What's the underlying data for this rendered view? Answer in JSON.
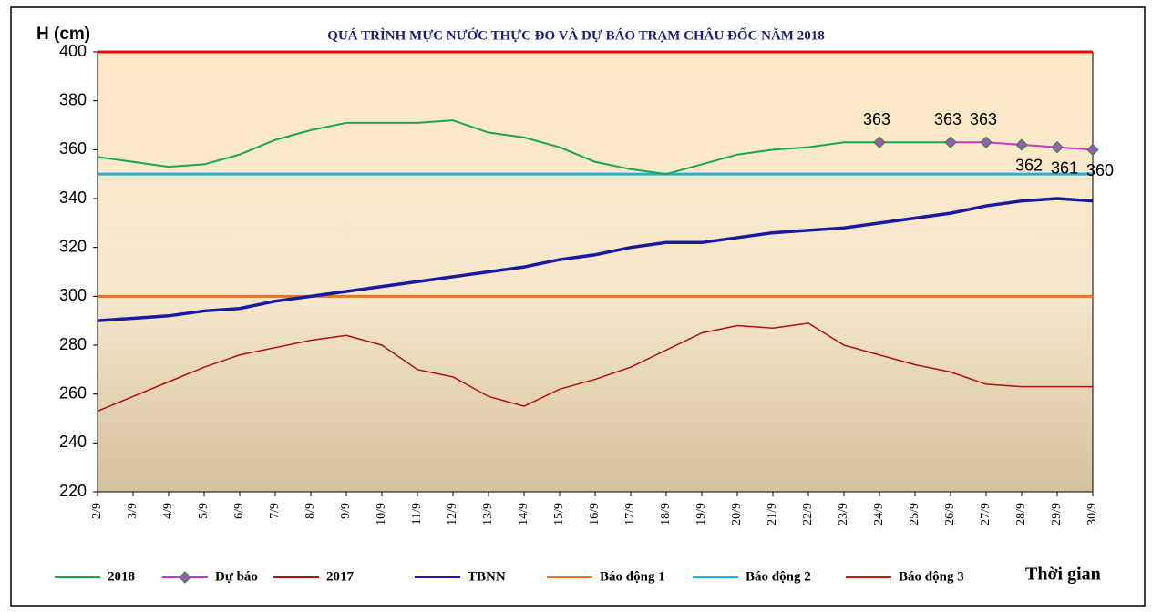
{
  "chart_data": {
    "type": "line",
    "title": "QUÁ TRÌNH MỰC NƯỚC THỰC ĐO VÀ DỰ BÁO TRẠM CHÂU ĐỐC NĂM 2018",
    "y_label": "H (cm)",
    "x_label": "Thời gian",
    "categories": [
      "2/9",
      "3/9",
      "4/9",
      "5/9",
      "6/9",
      "7/9",
      "8/9",
      "9/9",
      "10/9",
      "11/9",
      "12/9",
      "13/9",
      "14/9",
      "15/9",
      "16/9",
      "17/9",
      "18/9",
      "19/9",
      "20/9",
      "21/9",
      "22/9",
      "23/9",
      "24/9",
      "25/9",
      "26/9",
      "27/9",
      "28/9",
      "29/9",
      "30/9"
    ],
    "ylim": [
      220,
      400
    ],
    "yticks": [
      220,
      240,
      260,
      280,
      300,
      320,
      340,
      360,
      380,
      400
    ],
    "grid": false,
    "legend": "bottom",
    "series": [
      {
        "name": "2018",
        "color": "#1aa64a",
        "values": [
          357,
          355,
          353,
          354,
          358,
          364,
          368,
          371,
          371,
          371,
          372,
          367,
          365,
          361,
          355,
          352,
          350,
          354,
          358,
          360,
          361,
          363,
          363,
          363,
          363,
          null,
          null,
          null,
          null
        ]
      },
      {
        "name": "Dự báo",
        "color": "#cc33cc",
        "marker": "diamond",
        "marker_color": "#9b59b6",
        "values": [
          null,
          null,
          null,
          null,
          null,
          null,
          null,
          null,
          null,
          null,
          null,
          null,
          null,
          null,
          null,
          null,
          null,
          null,
          null,
          null,
          null,
          null,
          363,
          null,
          363,
          363,
          362,
          361,
          360
        ]
      },
      {
        "name": "2017",
        "color": "#b01010",
        "values": [
          253,
          259,
          265,
          271,
          276,
          279,
          282,
          284,
          280,
          270,
          267,
          259,
          255,
          262,
          266,
          271,
          278,
          285,
          288,
          287,
          289,
          280,
          276,
          272,
          269,
          264,
          263,
          263,
          263
        ]
      },
      {
        "name": "TBNN",
        "color": "#1a1aa0",
        "values": [
          290,
          291,
          292,
          294,
          295,
          298,
          300,
          302,
          304,
          306,
          308,
          310,
          312,
          315,
          317,
          320,
          322,
          322,
          324,
          326,
          327,
          328,
          330,
          332,
          334,
          337,
          339,
          340,
          339
        ]
      },
      {
        "name": "Báo động 1",
        "color": "#e8731a",
        "values": [
          300,
          300,
          300,
          300,
          300,
          300,
          300,
          300,
          300,
          300,
          300,
          300,
          300,
          300,
          300,
          300,
          300,
          300,
          300,
          300,
          300,
          300,
          300,
          300,
          300,
          300,
          300,
          300,
          300
        ]
      },
      {
        "name": "Báo động 2",
        "color": "#1ab0e8",
        "values": [
          350,
          350,
          350,
          350,
          350,
          350,
          350,
          350,
          350,
          350,
          350,
          350,
          350,
          350,
          350,
          350,
          350,
          350,
          350,
          350,
          350,
          350,
          350,
          350,
          350,
          350,
          350,
          350,
          350
        ]
      },
      {
        "name": "Báo động 3",
        "color": "#e01010",
        "values": [
          400,
          400,
          400,
          400,
          400,
          400,
          400,
          400,
          400,
          400,
          400,
          400,
          400,
          400,
          400,
          400,
          400,
          400,
          400,
          400,
          400,
          400,
          400,
          400,
          400,
          400,
          400,
          400,
          400
        ]
      }
    ]
  }
}
